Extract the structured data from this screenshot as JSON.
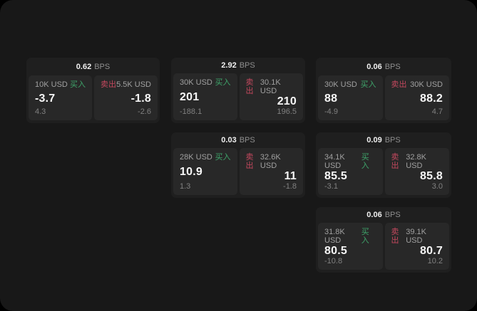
{
  "labels": {
    "buy": "买入",
    "sell": "卖出",
    "bps": "BPS"
  },
  "colors": {
    "app_background": "#181818",
    "card_background": "#1f1f1f",
    "panel_background": "#282828",
    "buy_green": "#3ea46a",
    "sell_red": "#c4485e",
    "price_white": "#f7f7f7",
    "label_gray": "#a0a0a0",
    "sub_gray": "#808080"
  },
  "cards": [
    {
      "spread": "0.62",
      "buy_size": "10K USD",
      "buy_price": "-3.7",
      "buy_sub": "4.3",
      "sell_size": "5.5K USD",
      "sell_price": "-1.8",
      "sell_sub": "-2.6"
    },
    {
      "spread": "2.92",
      "buy_size": "30K USD",
      "buy_price": "201",
      "buy_sub": "-188.1",
      "sell_size": "30.1K USD",
      "sell_price": "210",
      "sell_sub": "196.5"
    },
    {
      "spread": "0.06",
      "buy_size": "30K USD",
      "buy_price": "88",
      "buy_sub": "-4.9",
      "sell_size": "30K USD",
      "sell_price": "88.2",
      "sell_sub": "4.7"
    },
    {
      "spread": "0.03",
      "buy_size": "28K USD",
      "buy_price": "10.9",
      "buy_sub": "1.3",
      "sell_size": "32.6K USD",
      "sell_price": "11",
      "sell_sub": "-1.8"
    },
    {
      "spread": "0.09",
      "buy_size": "34.1K USD",
      "buy_price": "85.5",
      "buy_sub": "-3.1",
      "sell_size": "32.8K USD",
      "sell_price": "85.8",
      "sell_sub": "3.0"
    },
    {
      "spread": "0.06",
      "buy_size": "31.8K USD",
      "buy_price": "80.5",
      "buy_sub": "-10.8",
      "sell_size": "39.1K USD",
      "sell_price": "80.7",
      "sell_sub": "10.2"
    }
  ]
}
